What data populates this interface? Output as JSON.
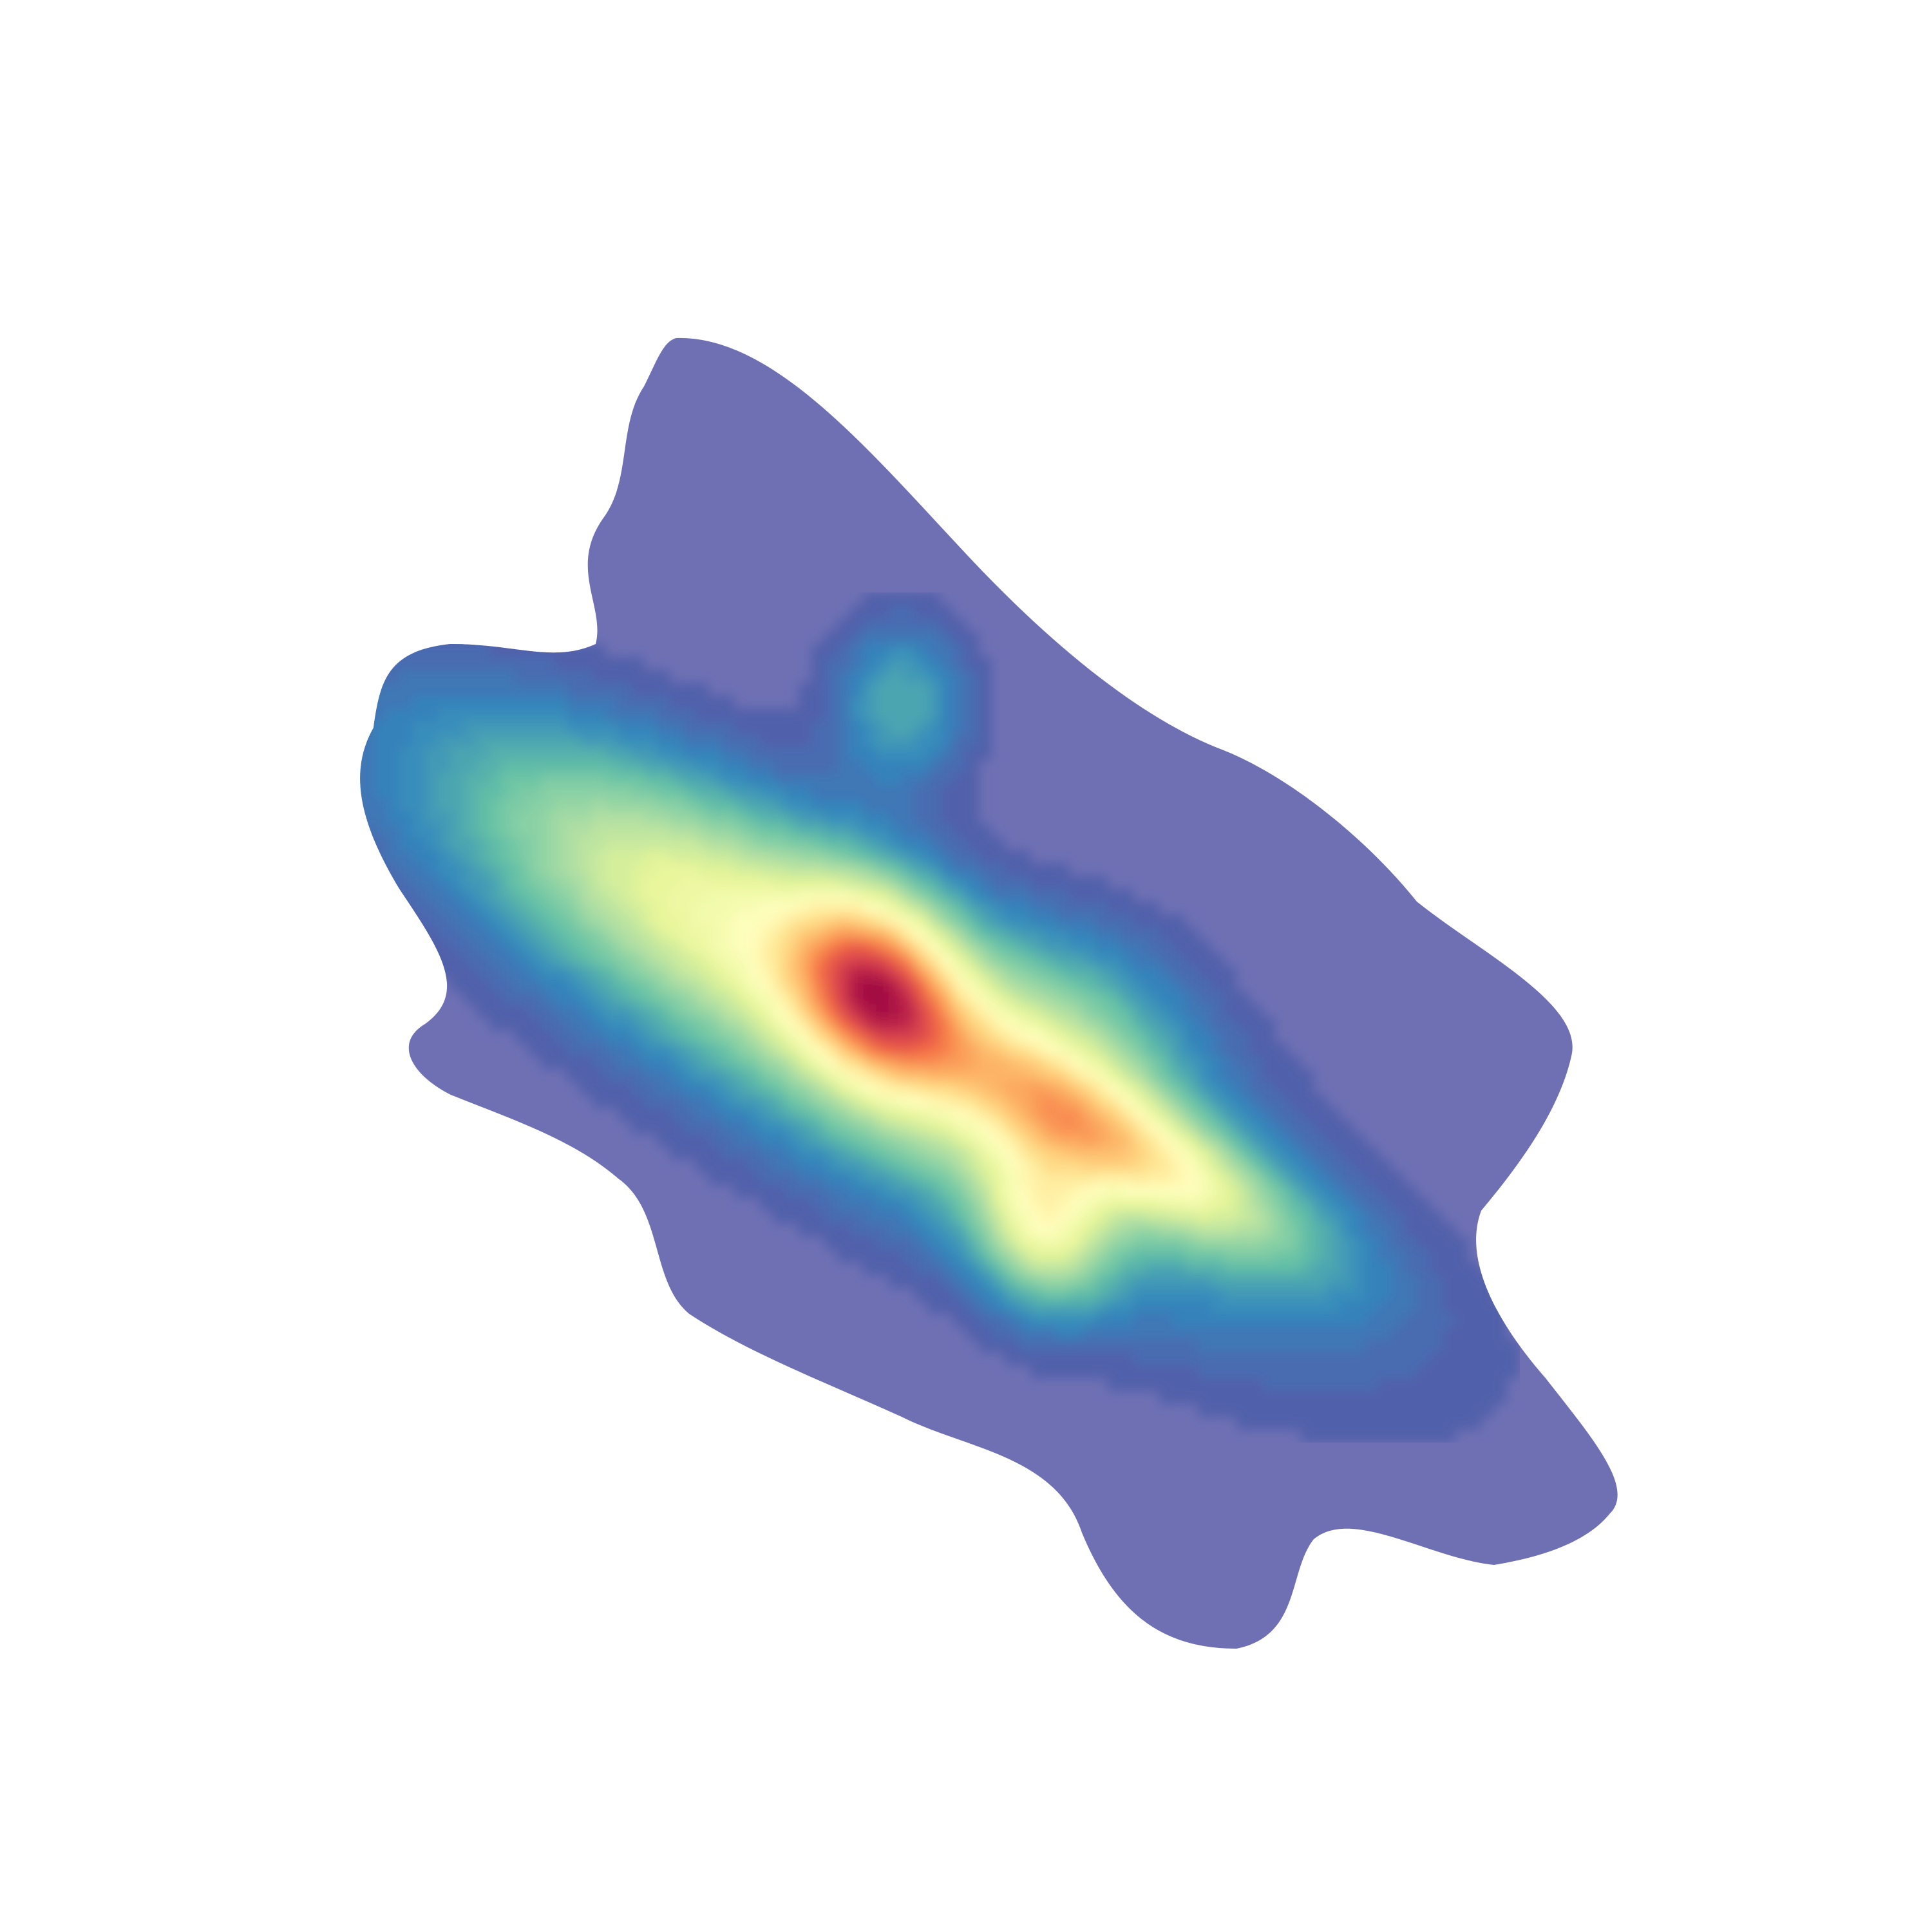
{
  "chart_data": {
    "type": "heatmap",
    "subtype": "2d-kde-filled-contours",
    "title": "",
    "xlabel": "",
    "ylabel": "",
    "axes_visible": false,
    "grid": false,
    "colormap": "Spectral_r",
    "colormap_stops": [
      "#5e4fa2",
      "#3288bd",
      "#66c2a5",
      "#abdda4",
      "#e6f598",
      "#ffffbf",
      "#fee08b",
      "#fdae61",
      "#f46d43",
      "#d53e4f",
      "#9e0142"
    ],
    "outline_color": "#6f70b4",
    "xlim": [
      0,
      1
    ],
    "ylim": [
      0,
      1
    ],
    "levels": 50,
    "density_components": [
      {
        "x": 0.443,
        "y": 0.485,
        "sx": 0.035,
        "sy": 0.046,
        "rot": 30,
        "weight": 1.0
      },
      {
        "x": 0.603,
        "y": 0.384,
        "sx": 0.085,
        "sy": 0.024,
        "rot": -29,
        "weight": 0.68
      },
      {
        "x": 0.55,
        "y": 0.333,
        "sx": 0.028,
        "sy": 0.036,
        "rot": 15,
        "weight": 0.58
      },
      {
        "x": 0.44,
        "y": 0.46,
        "sx": 0.2,
        "sy": 0.058,
        "rot": -31,
        "weight": 0.58
      },
      {
        "x": 0.32,
        "y": 0.55,
        "sx": 0.11,
        "sy": 0.045,
        "rot": -28,
        "weight": 0.33
      },
      {
        "x": 0.458,
        "y": 0.67,
        "sx": 0.03,
        "sy": 0.036,
        "rot": 0,
        "weight": 0.28
      },
      {
        "x": 0.56,
        "y": 0.445,
        "sx": 0.055,
        "sy": 0.05,
        "rot": 0,
        "weight": 0.3
      }
    ]
  }
}
